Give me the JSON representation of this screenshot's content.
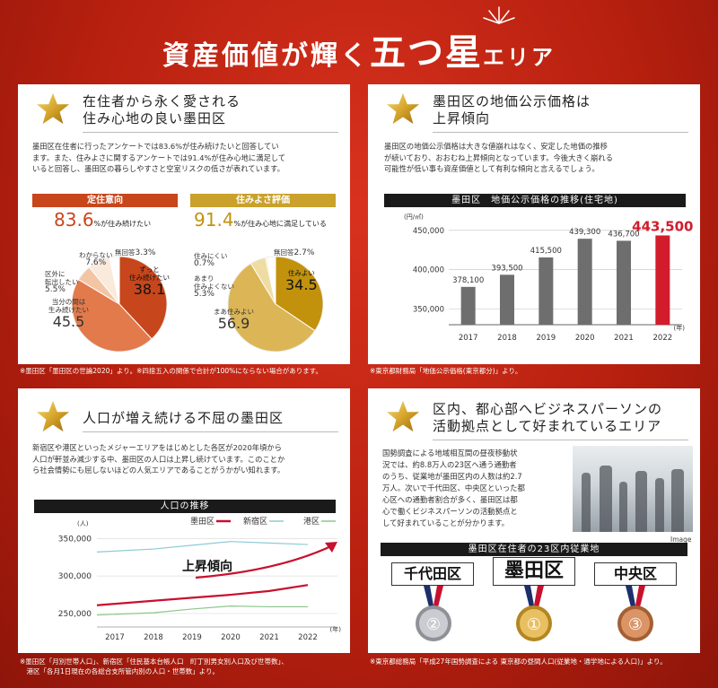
{
  "banner": {
    "part1": "資産価値が輝く",
    "part2": "五つ星",
    "part3": "エリア"
  },
  "panel1": {
    "title_line1": "在住者から永く愛される",
    "title_line2": "住み心地の良い墨田区",
    "body_line1": "墨田区在住者に行ったアンケートでは83.6%が住み続けたいと回答してい",
    "body_line2": "ます。また、住みよさに関するアンケートでは91.4%が住み心地に満足して",
    "body_line3": "いると回答し、墨田区の暮らしやすさと空室リスクの低さが表れています。",
    "left": {
      "head": "定住意向",
      "big_int": "83.",
      "big_dec": "6",
      "big_text": "%が住み続けたい",
      "slices": [
        {
          "label": "ずっと住み続けたい",
          "l1": "ずっと",
          "l2": "住み続けたい",
          "value": "38.1",
          "v": 38.1,
          "color": "#c8461b"
        },
        {
          "label": "当分の間は生み続けたい",
          "l1": "当分の間は",
          "l2": "生み続けたい",
          "value": "45.5",
          "v": 45.5,
          "color": "#e27a4b"
        },
        {
          "label": "区外に転出したい",
          "l1": "区外に",
          "l2": "転出したい",
          "value": "5.5%",
          "v": 5.5,
          "color": "#f3c5a3"
        },
        {
          "label": "わからない",
          "value": "7.6%",
          "v": 7.6,
          "color": "#faeadc"
        },
        {
          "label": "無回答",
          "value": "3.3%",
          "v": 3.3,
          "color": "#ffffff"
        }
      ]
    },
    "right": {
      "head": "住みよさ評価",
      "big_int": "91.",
      "big_dec": "4",
      "big_text": "%が住み心地に満足している",
      "slices": [
        {
          "label": "住みよい",
          "value": "34.5",
          "v": 34.5,
          "color": "#c2920c"
        },
        {
          "label": "まあ住みよい",
          "value": "56.9",
          "v": 56.9,
          "color": "#dcb656"
        },
        {
          "label": "あまり住みよくない",
          "l1": "あまり",
          "l2": "住みよくない",
          "value": "5.3%",
          "v": 5.3,
          "color": "#efdca2"
        },
        {
          "label": "住みにくい",
          "value": "0.7%",
          "v": 0.7,
          "color": "#f8efd3"
        },
        {
          "label": "無回答",
          "value": "2.7%",
          "v": 2.7,
          "color": "#ffffff"
        }
      ]
    }
  },
  "panel2": {
    "title_line1": "墨田区の地価公示価格は",
    "title_line2": "上昇傾向",
    "body_line1": "墨田区の地価公示価格は大きな値崩れはなく、安定した地価の推移",
    "body_line2": "が続いており、おおむね上昇傾向となっています。今後大きく崩れる",
    "body_line3": "可能性が低い事も資産価値として有利な傾向と言えるでしょう。"
  },
  "panel3": {
    "title": "人口が増え続ける不屈の墨田区",
    "body_line1": "新宿区や港区といったメジャーエリアをはじめとした各区が2020年頃から",
    "body_line2": "人口が軒並み減少する中、墨田区の人口は上昇し続けています。このことか",
    "body_line3": "ら社会情勢にも屈しないほどの人気エリアであることがうかがい知れます。",
    "trend_text": "上昇傾向"
  },
  "panel4": {
    "title_line1": "区内、都心部へビジネスパーソンの",
    "title_line2": "活動拠点として好まれているエリア",
    "body_line1": "国勢調査による地域相互間の昼夜移動状",
    "body_line2": "況では、約8.8万人の23区へ通う通勤者",
    "body_line3": "のうち、従業地が墨田区内の人数は約2.7",
    "body_line4": "万人。次いで千代田区、中央区といった都",
    "body_line5": "心区への通勤者割合が多く、墨田区は都",
    "body_line6": "心で働くビジネスパーソンの活動拠点と",
    "body_line7": "して好まれていることが分かります。",
    "image_caption": "Image",
    "rank_head": "墨田区在住者の23区内従業地",
    "ranks": [
      {
        "name": "千代田区",
        "medal": "②",
        "color": "#b9bcc1",
        "dark": "#8e9297"
      },
      {
        "name": "墨田区",
        "medal": "①",
        "color": "#e2b54c",
        "dark": "#b38621"
      },
      {
        "name": "中央区",
        "medal": "③",
        "color": "#d58a57",
        "dark": "#a45f33"
      }
    ]
  },
  "notes": {
    "n1": "※墨田区「墨田区の世論2020」より。※四捨五入の関係で合計が100%にならない場合があります。",
    "n2": "※東京都財務局「地価公示価格(東京都分)」より。",
    "n3a": "※墨田区「月別世帯人口」、新宿区「住民基本台帳人口　町丁別男女別人口及び世帯数」、",
    "n3b": "　港区「各月1日現在の各総合支所管内別の人口・世帯数」より。",
    "n4": "※東京都総務局「平成27年国勢調査による 東京都の昼間人口(従業地・通学地による人口)」より。"
  },
  "chart_data": [
    {
      "type": "bar",
      "title": "墨田区　地価公示価格の推移(住宅地)",
      "ylabel": "(円/㎡)",
      "xlabel": "(年)",
      "categories": [
        "2017",
        "2018",
        "2019",
        "2020",
        "2021",
        "2022"
      ],
      "values": [
        378100,
        393500,
        415500,
        439300,
        436700,
        443500
      ],
      "value_labels": [
        "378,100",
        "393,500",
        "415,500",
        "439,300",
        "436,700",
        "443,500"
      ],
      "yticks": [
        "450,000",
        "400,000",
        "350,000"
      ],
      "ytick_values": [
        450000,
        400000,
        350000
      ],
      "ylim": [
        330000,
        460000
      ],
      "highlight_color": "#d21c2b",
      "bar_color": "#6e6e6e"
    },
    {
      "type": "line",
      "title": "人口の推移",
      "ylabel": "(人)",
      "xlabel": "(年)",
      "x": [
        "2017",
        "2018",
        "2019",
        "2020",
        "2021",
        "2022"
      ],
      "yticks": [
        "350,000",
        "300,000",
        "250,000"
      ],
      "ytick_values": [
        350000,
        300000,
        250000
      ],
      "ylim": [
        232000,
        360000
      ],
      "grid": true,
      "legend_position": "top",
      "series": [
        {
          "name": "墨田区",
          "values": [
            261000,
            267000,
            271000,
            275000,
            280000,
            288000
          ],
          "color": "#c8102e"
        },
        {
          "name": "新宿区",
          "values": [
            332000,
            336000,
            341000,
            346000,
            344000,
            342000
          ],
          "color": "#8ccbd6"
        },
        {
          "name": "港区",
          "values": [
            248000,
            251000,
            256000,
            260000,
            259000,
            259000
          ],
          "color": "#8cc78c"
        }
      ]
    }
  ]
}
